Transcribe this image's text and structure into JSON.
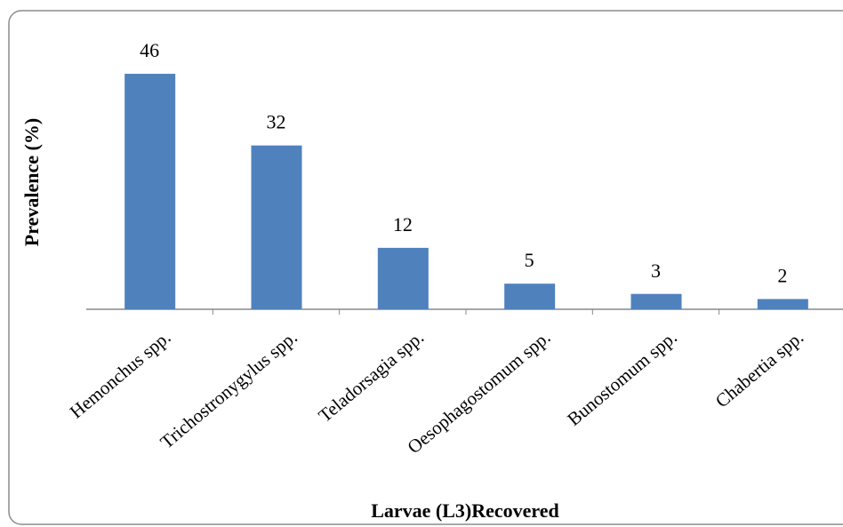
{
  "chart_data": {
    "type": "bar",
    "x_label": "Larvae (L3)Recovered",
    "y_label": "Prevalence (%)",
    "categories": [
      "Hemonchus spp.",
      "Trichostronygylus  spp.",
      "Teladorsagia spp.",
      "Oesophagostomum spp.",
      "Bunostomum spp.",
      "Chabertia spp."
    ],
    "values": [
      46,
      32,
      12,
      5,
      3,
      2
    ],
    "color": "#4f81bd",
    "ylim": [
      0,
      50
    ]
  }
}
